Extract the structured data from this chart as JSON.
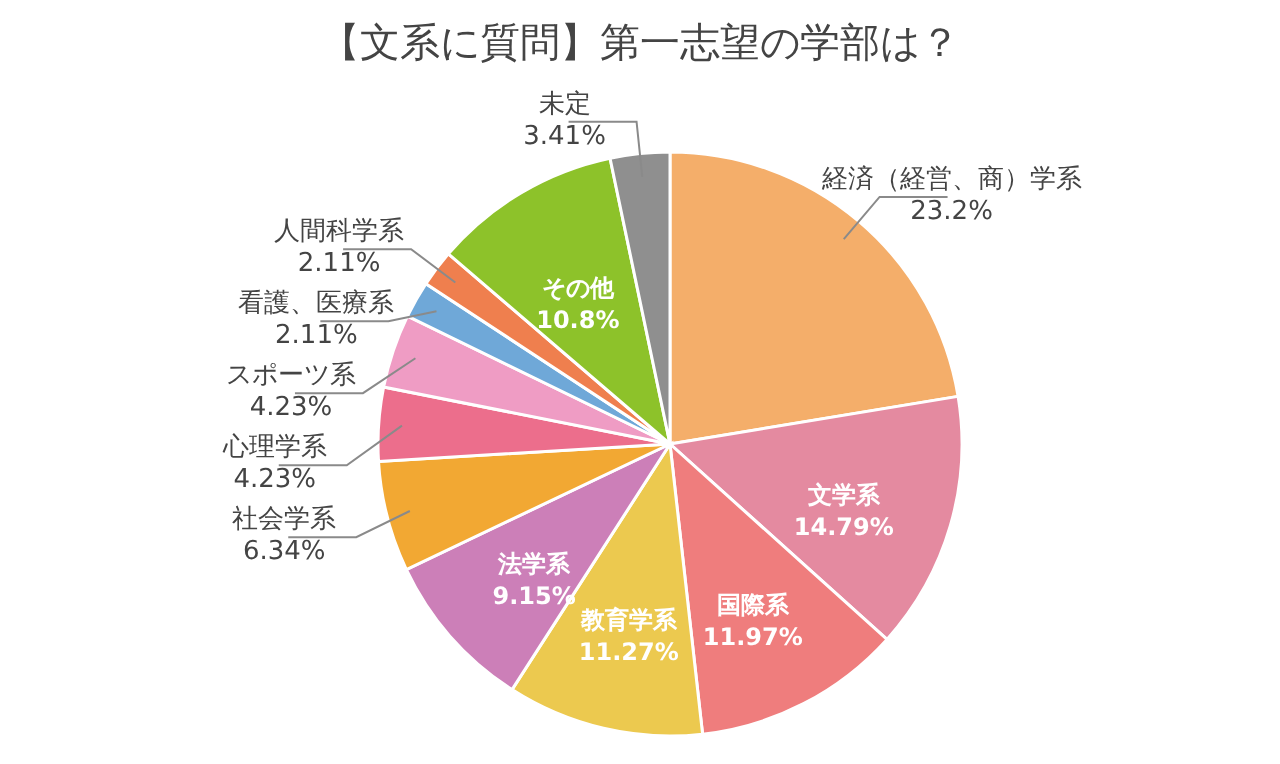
{
  "chart_data": {
    "type": "pie",
    "title": "【文系に質問】第一志望の学部は？",
    "categories": [
      "経済（経営、商）学系",
      "文学系",
      "国際系",
      "教育学系",
      "法学系",
      "社会学系",
      "心理学系",
      "スポーツ系",
      "看護、医療系",
      "人間科学系",
      "その他",
      "未定"
    ],
    "values": [
      23.2,
      14.79,
      11.97,
      11.27,
      9.15,
      6.34,
      4.23,
      4.23,
      2.11,
      2.11,
      10.8,
      3.41
    ],
    "colors": [
      "#f4ae6a",
      "#e48aa0",
      "#ef7d7d",
      "#ecc94f",
      "#cc7fb8",
      "#f2a833",
      "#ec6e8c",
      "#ef9cc4",
      "#6fa8d8",
      "#ef7f4e",
      "#8dc22a",
      "#8f8f8f"
    ],
    "value_labels": [
      "23.2%",
      "14.79%",
      "11.97%",
      "11.27%",
      "9.15%",
      "6.34%",
      "4.23%",
      "4.23%",
      "2.11%",
      "2.11%",
      "10.8%",
      "3.41%"
    ]
  }
}
